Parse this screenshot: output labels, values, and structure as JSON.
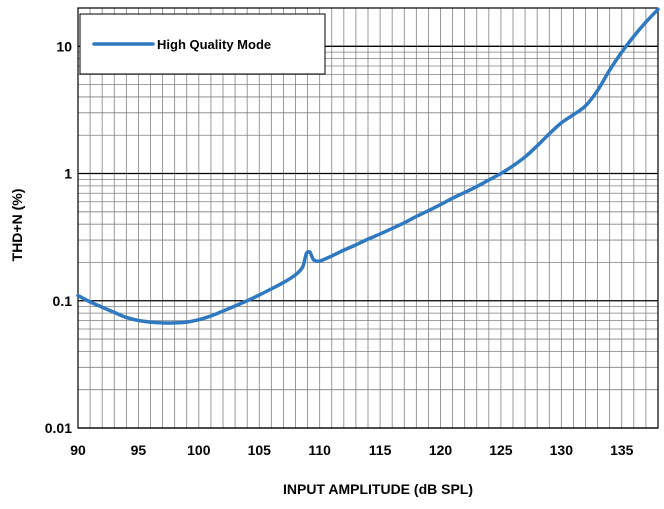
{
  "chart_data": {
    "type": "line",
    "title": "",
    "xlabel": "INPUT AMPLITUDE (dB SPL)",
    "ylabel": "THD+N (%)",
    "xlim": [
      90,
      138
    ],
    "ylim": [
      0.01,
      20
    ],
    "yscale": "log",
    "grid": true,
    "legend_position": "top-left",
    "x_ticks": [
      90,
      95,
      100,
      105,
      110,
      115,
      120,
      125,
      130,
      135
    ],
    "x_tick_labels": [
      "90",
      "95",
      "100",
      "105",
      "110",
      "115",
      "120",
      "125",
      "130",
      "135"
    ],
    "y_ticks": [
      0.01,
      0.1,
      1,
      10
    ],
    "y_tick_labels": [
      "0.01",
      "0.1",
      "1",
      "10"
    ],
    "series": [
      {
        "name": "High Quality Mode",
        "color": "#2F79C0",
        "x": [
          90,
          91,
          92,
          93,
          94,
          95,
          96,
          97,
          98,
          99,
          100,
          101,
          102,
          103,
          104,
          105,
          106,
          107,
          108,
          108.6,
          108.9,
          109.2,
          109.5,
          110,
          111,
          112,
          113,
          114,
          115,
          116,
          117,
          118,
          119,
          120,
          121,
          122,
          123,
          124,
          125,
          126,
          127,
          128,
          129,
          130,
          131,
          132,
          133,
          134,
          135,
          136,
          137,
          138
        ],
        "y": [
          0.11,
          0.098,
          0.089,
          0.081,
          0.074,
          0.07,
          0.068,
          0.067,
          0.067,
          0.068,
          0.071,
          0.076,
          0.083,
          0.091,
          0.1,
          0.111,
          0.124,
          0.139,
          0.16,
          0.185,
          0.235,
          0.24,
          0.21,
          0.205,
          0.225,
          0.25,
          0.275,
          0.305,
          0.335,
          0.37,
          0.41,
          0.46,
          0.51,
          0.57,
          0.64,
          0.71,
          0.79,
          0.89,
          1.0,
          1.15,
          1.35,
          1.65,
          2.05,
          2.5,
          2.9,
          3.4,
          4.5,
          6.5,
          9.0,
          12.0,
          15.5,
          19.5
        ]
      }
    ]
  }
}
